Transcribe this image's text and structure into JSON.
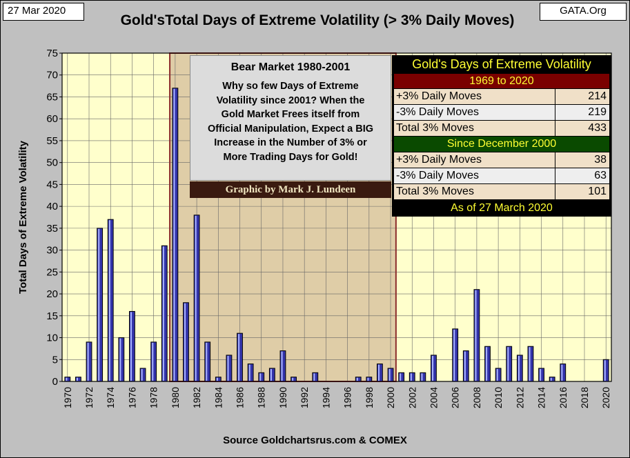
{
  "date_tag": "27 Mar 2020",
  "source_tag": "GATA.Org",
  "title": "Gold'sTotal Days of Extreme Volatility (> 3% Daily Moves)",
  "source": "Source Goldchartsrus.com & COMEX",
  "annotation": {
    "heading": "Bear Market  1980-2001",
    "lines": [
      "Why so few Days of Extreme",
      "Volatility since 2001?  When the",
      "Gold Market Frees itself from",
      "Official Manipulation, Expect a BIG",
      "Increase in the Number of 3% or",
      "More Trading Days for Gold!"
    ],
    "credit": "Graphic by Mark J. Lundeen"
  },
  "stats_table": {
    "title": "Gold's Days of Extreme Volatility",
    "section1": "1969 to 2020",
    "rows1": [
      {
        "label": "+3% Daily Moves",
        "value": "214"
      },
      {
        "label": "-3% Daily Moves",
        "value": "219"
      },
      {
        "label": "Total 3% Moves",
        "value": "433"
      }
    ],
    "section2": "Since December 2000",
    "rows2": [
      {
        "label": "+3% Daily Moves",
        "value": "38"
      },
      {
        "label": "-3% Daily Moves",
        "value": "63"
      },
      {
        "label": "Total 3% Moves",
        "value": "101"
      }
    ],
    "footer": "As of 27 March 2020"
  },
  "colors": {
    "plot_bg": "#ffffcc",
    "bear_shade": "#d9c4a0",
    "bar_fill": "#3333aa",
    "bar_highlight": "#aab4ff",
    "bear_line": "#8b2b2b",
    "table_bg": "#000000",
    "table_yellow": "#ffff33",
    "table_red": "#7a0000",
    "table_green": "#0a4a00",
    "row_light": "#eeeeee",
    "row_tan": "#f0e0c8"
  },
  "chart_data": {
    "type": "bar",
    "title": "Gold'sTotal Days of Extreme Volatility (> 3% Daily Moves)",
    "xlabel": "",
    "ylabel": "Total Days of Extreme Volatility",
    "ylim": [
      0,
      75
    ],
    "yticks": [
      0,
      5,
      10,
      15,
      20,
      25,
      30,
      35,
      40,
      45,
      50,
      55,
      60,
      65,
      70,
      75
    ],
    "xtick_labels": [
      "1970",
      "1972",
      "1974",
      "1976",
      "1978",
      "1980",
      "1982",
      "1984",
      "1986",
      "1988",
      "1990",
      "1992",
      "1994",
      "1996",
      "1998",
      "2000",
      "2002",
      "2004",
      "2006",
      "2008",
      "2010",
      "2012",
      "2014",
      "2016",
      "2018",
      "2020"
    ],
    "grid": true,
    "shaded_region": {
      "label": "Bear Market  1980-2001",
      "from": 1980,
      "to": 2000
    },
    "years": [
      1970,
      1971,
      1972,
      1973,
      1974,
      1975,
      1976,
      1977,
      1978,
      1979,
      1980,
      1981,
      1982,
      1983,
      1984,
      1985,
      1986,
      1987,
      1988,
      1989,
      1990,
      1991,
      1992,
      1993,
      1994,
      1995,
      1996,
      1997,
      1998,
      1999,
      2000,
      2001,
      2002,
      2003,
      2004,
      2005,
      2006,
      2007,
      2008,
      2009,
      2010,
      2011,
      2012,
      2013,
      2014,
      2015,
      2016,
      2017,
      2018,
      2019,
      2020
    ],
    "values": [
      1,
      1,
      9,
      35,
      37,
      10,
      16,
      3,
      9,
      31,
      67,
      18,
      38,
      9,
      1,
      6,
      11,
      4,
      2,
      3,
      7,
      1,
      0,
      2,
      0,
      0,
      0,
      1,
      1,
      4,
      3,
      2,
      2,
      2,
      6,
      0,
      12,
      7,
      21,
      8,
      3,
      8,
      6,
      8,
      3,
      1,
      4,
      0,
      0,
      0,
      5
    ]
  }
}
